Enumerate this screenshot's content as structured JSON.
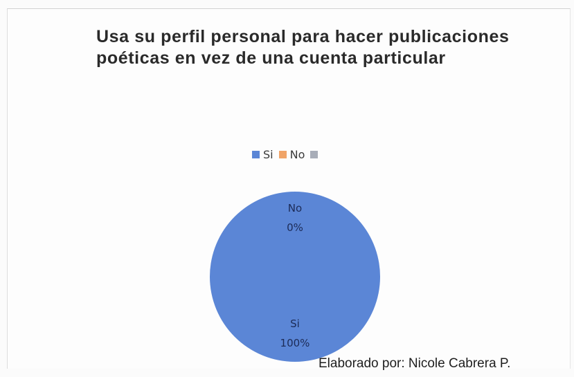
{
  "chart_data": {
    "type": "pie",
    "title": "Usa su perfil personal para hacer publicaciones poéticas en vez de una cuenta particular",
    "categories": [
      "Si",
      "No",
      ""
    ],
    "values": [
      100,
      0,
      0
    ],
    "colors": [
      "#5b86d6",
      "#f0a468",
      "#a8adb8"
    ],
    "legend_position": "top",
    "data_labels": [
      {
        "category": "Si",
        "label": "Si",
        "percent": "100%"
      },
      {
        "category": "No",
        "label": "No",
        "percent": "0%"
      }
    ]
  },
  "footer": {
    "credit": "Elaborado por: Nicole Cabrera P."
  }
}
